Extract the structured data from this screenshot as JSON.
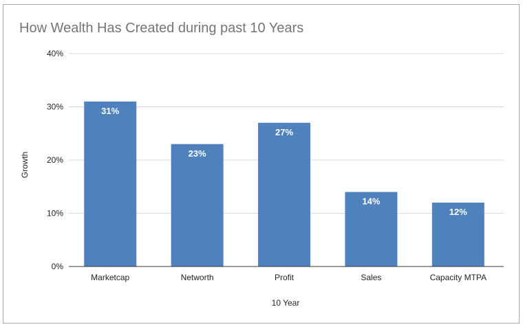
{
  "chart_data": {
    "type": "bar",
    "title": "How Wealth Has Created during past 10 Years",
    "xlabel": "10 Year",
    "ylabel": "Growth",
    "categories": [
      "Marketcap",
      "Networth",
      "Profit",
      "Sales",
      "Capacity MTPA"
    ],
    "values": [
      31,
      23,
      27,
      14,
      12
    ],
    "data_labels": [
      "31%",
      "23%",
      "27%",
      "14%",
      "12%"
    ],
    "ylim": [
      0,
      40
    ],
    "yticks": [
      0,
      10,
      20,
      30,
      40
    ],
    "ytick_labels": [
      "0%",
      "10%",
      "20%",
      "30%",
      "40%"
    ],
    "grid": true,
    "legend": "none",
    "bar_color": "#4f81bd"
  }
}
